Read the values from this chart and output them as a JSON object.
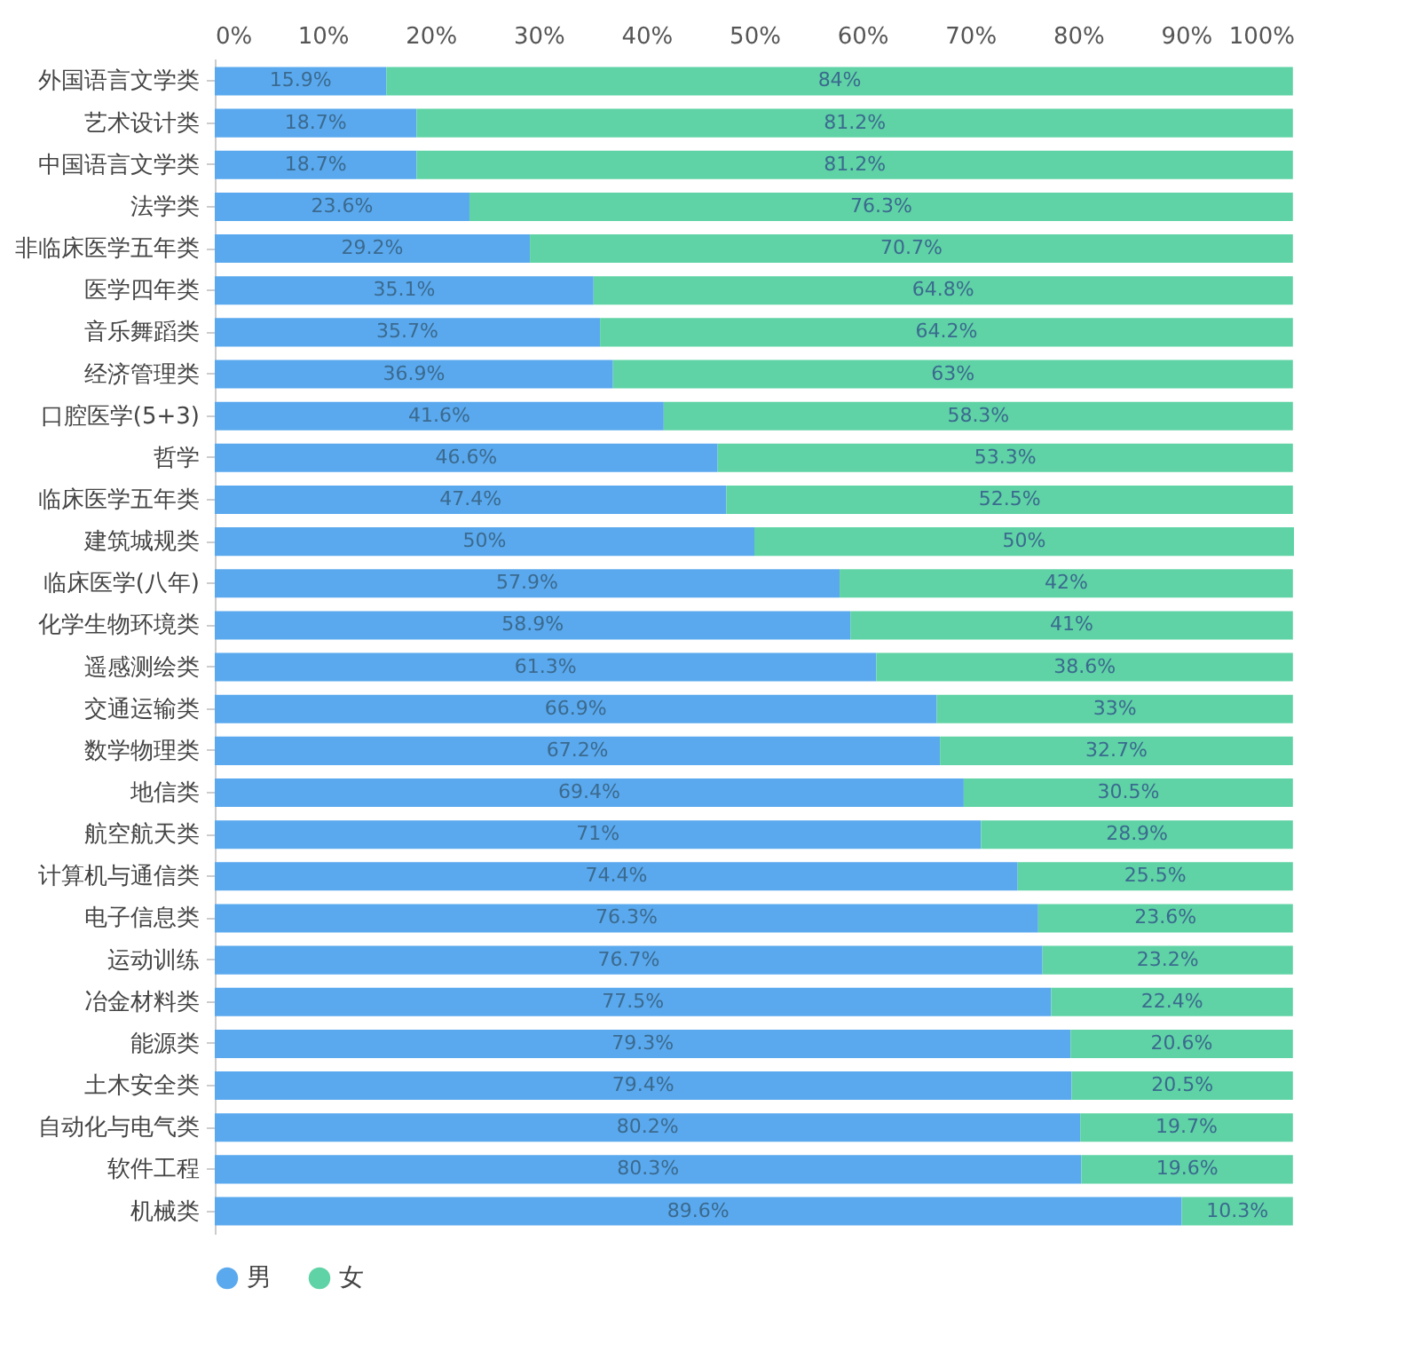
{
  "chart_data": {
    "type": "bar",
    "orientation": "horizontal",
    "stacked": true,
    "categories": [
      "外国语言文学类",
      "艺术设计类",
      "中国语言文学类",
      "法学类",
      "非临床医学五年类",
      "医学四年类",
      "音乐舞蹈类",
      "经济管理类",
      "口腔医学(5+3)",
      "哲学",
      "临床医学五年类",
      "建筑城规类",
      "临床医学(八年)",
      "化学生物环境类",
      "遥感测绘类",
      "交通运输类",
      "数学物理类",
      "地信类",
      "航空航天类",
      "计算机与通信类",
      "电子信息类",
      "运动训练",
      "冶金材料类",
      "能源类",
      "土木安全类",
      "自动化与电气类",
      "软件工程",
      "机械类"
    ],
    "series": [
      {
        "name": "男",
        "color": "#5aa9ee",
        "values": [
          15.9,
          18.7,
          18.7,
          23.6,
          29.2,
          35.1,
          35.7,
          36.9,
          41.6,
          46.6,
          47.4,
          50,
          57.9,
          58.9,
          61.3,
          66.9,
          67.2,
          69.4,
          71,
          74.4,
          76.3,
          76.7,
          77.5,
          79.3,
          79.4,
          80.2,
          80.3,
          89.6
        ],
        "value_labels": [
          "15.9%",
          "18.7%",
          "18.7%",
          "23.6%",
          "29.2%",
          "35.1%",
          "35.7%",
          "36.9%",
          "41.6%",
          "46.6%",
          "47.4%",
          "50%",
          "57.9%",
          "58.9%",
          "61.3%",
          "66.9%",
          "67.2%",
          "69.4%",
          "71%",
          "74.4%",
          "76.3%",
          "76.7%",
          "77.5%",
          "79.3%",
          "79.4%",
          "80.2%",
          "80.3%",
          "89.6%"
        ]
      },
      {
        "name": "女",
        "color": "#5fd3a5",
        "values": [
          84,
          81.2,
          81.2,
          76.3,
          70.7,
          64.8,
          64.2,
          63,
          58.3,
          53.3,
          52.5,
          50,
          42,
          41,
          38.6,
          33,
          32.7,
          30.5,
          28.9,
          25.5,
          23.6,
          23.2,
          22.4,
          20.6,
          20.5,
          19.7,
          19.6,
          10.3
        ],
        "value_labels": [
          "84%",
          "81.2%",
          "81.2%",
          "76.3%",
          "70.7%",
          "64.8%",
          "64.2%",
          "63%",
          "58.3%",
          "53.3%",
          "52.5%",
          "50%",
          "42%",
          "41%",
          "38.6%",
          "33%",
          "32.7%",
          "30.5%",
          "28.9%",
          "25.5%",
          "23.6%",
          "23.2%",
          "22.4%",
          "20.6%",
          "20.5%",
          "19.7%",
          "19.6%",
          "10.3%"
        ]
      }
    ],
    "xlim": [
      0,
      100
    ],
    "xticks": [
      {
        "value": 0,
        "label": "0%"
      },
      {
        "value": 10,
        "label": "10%"
      },
      {
        "value": 20,
        "label": "20%"
      },
      {
        "value": 30,
        "label": "30%"
      },
      {
        "value": 40,
        "label": "40%"
      },
      {
        "value": 50,
        "label": "50%"
      },
      {
        "value": 60,
        "label": "60%"
      },
      {
        "value": 70,
        "label": "70%"
      },
      {
        "value": 80,
        "label": "80%"
      },
      {
        "value": 90,
        "label": "90%"
      },
      {
        "value": 100,
        "label": "100%"
      }
    ],
    "legend": "bottom",
    "grid": false
  }
}
